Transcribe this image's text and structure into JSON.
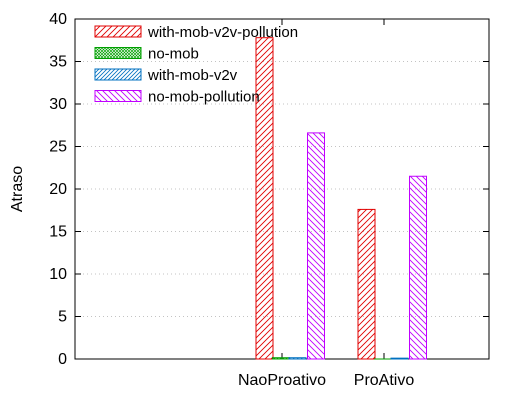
{
  "chart_data": {
    "type": "bar",
    "title": "",
    "xlabel": "",
    "ylabel": "Atraso",
    "ylim": [
      0,
      40
    ],
    "yticks": [
      0,
      5,
      10,
      15,
      20,
      25,
      30,
      35,
      40
    ],
    "grid": "horizontal-dotted",
    "legend_position": "top-left",
    "categories": [
      "NaoProativo",
      "ProAtivo"
    ],
    "series": [
      {
        "name": "with-mob-v2v-pollution",
        "color": "#e00000",
        "pattern": "diag-up",
        "values": [
          37.8,
          17.6
        ]
      },
      {
        "name": "no-mob",
        "color": "#00a000",
        "pattern": "crosshatch",
        "values": [
          0.15,
          0.0
        ]
      },
      {
        "name": "with-mob-v2v",
        "color": "#0070c0",
        "pattern": "diag-up",
        "values": [
          0.15,
          0.1
        ]
      },
      {
        "name": "no-mob-pollution",
        "color": "#c000ff",
        "pattern": "diag-down",
        "values": [
          26.6,
          21.5
        ]
      }
    ]
  }
}
